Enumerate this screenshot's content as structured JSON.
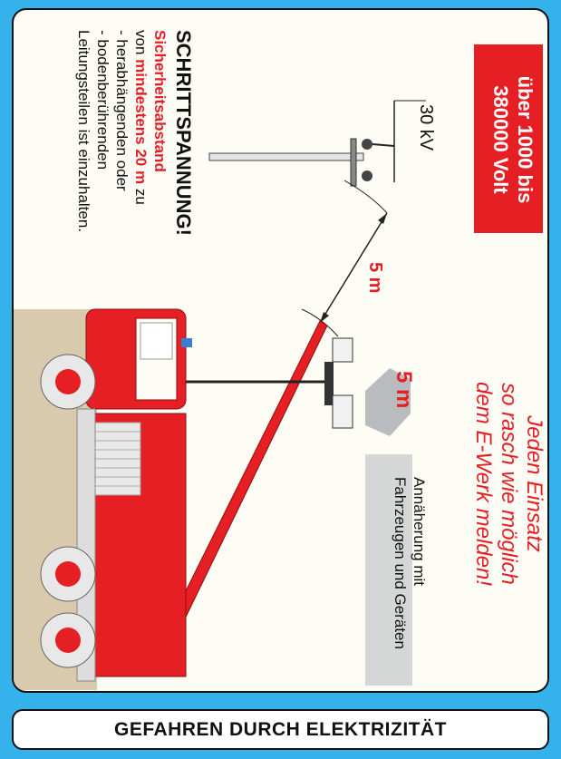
{
  "voltage_box": {
    "line1": "über 1000 bis",
    "line2": "380000 Volt"
  },
  "line_label": "30 kV",
  "distance_label": "5 m",
  "hex_sign": {
    "label": "5 m"
  },
  "approach_label": {
    "line1": "Annäherung mit",
    "line2": "Fahrzeugen und Geräten"
  },
  "ewerk_message": {
    "line1": "Jeden Einsatz",
    "line2": "so rasch wie möglich",
    "line3": "dem E-Werk melden!"
  },
  "step_voltage": {
    "title": "SCHRITTSPANNUNG!",
    "heading": "Sicherheitsabstand",
    "line2_pre": "von ",
    "line2_bold": "mindestens 20 m",
    "line2_post": " zu",
    "line3": "- herabhängenden oder",
    "line4": "- bodenberührenden",
    "line5": "Leitungsteilen ist einzuhalten."
  },
  "footer_title": "GEFAHREN DURCH ELEKTRIZITÄT",
  "colors": {
    "frame": "#35b2ec",
    "accent_red": "#e51f24",
    "card": "#fdfdf6",
    "ground": "#d9c9ad",
    "hex_gray": "#b9bcbe"
  }
}
